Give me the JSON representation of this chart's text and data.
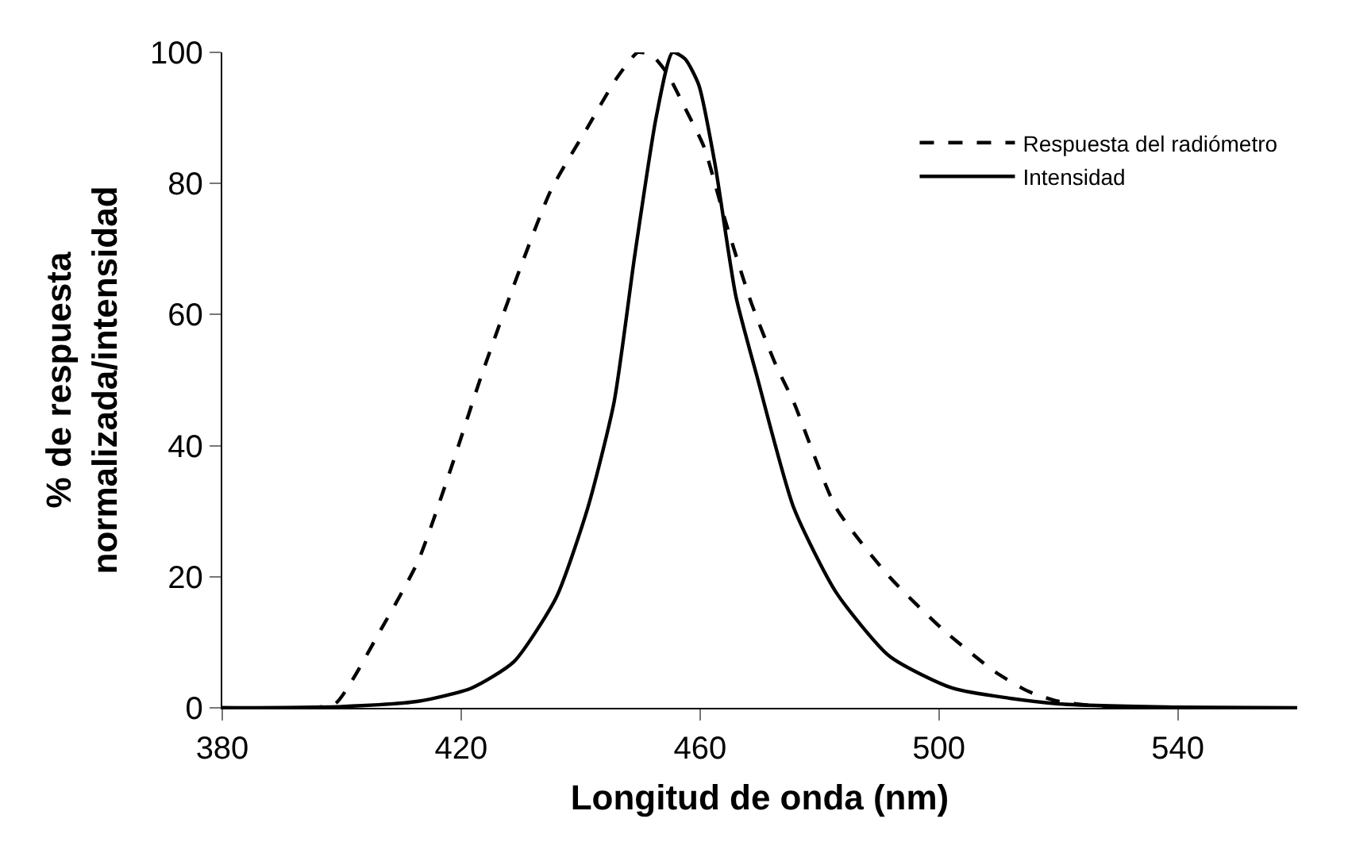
{
  "chart_data": {
    "type": "line",
    "xlabel": "Longitud de onda (nm)",
    "ylabel": "% de respuesta normalizada/intensidad",
    "xlim": [
      380,
      560
    ],
    "xticks": [
      380,
      420,
      460,
      500,
      540
    ],
    "ylim": [
      0,
      100
    ],
    "yticks": [
      0,
      20,
      40,
      60,
      80,
      100
    ],
    "grid": false,
    "legend": "top right",
    "marker": "none",
    "series": [
      {
        "name": "Respuesta del radiómetro",
        "color": "#000000",
        "line_style": "dashed",
        "x": [
          380,
          395,
          399,
          406.6,
          412.8,
          418.1,
          423.4,
          428.8,
          435,
          441.2,
          446,
          449.6,
          452,
          454.5,
          457.5,
          460.7,
          464.3,
          468.5,
          472.7,
          475.7,
          482.8,
          491.7,
          500.6,
          509.4,
          515,
          520,
          530,
          560
        ],
        "values": [
          0,
          0,
          0.7,
          12,
          22.4,
          36,
          50.7,
          64.4,
          78.9,
          88.6,
          96,
          100,
          99.5,
          96.8,
          91.5,
          85.5,
          74.1,
          62,
          52.3,
          46.6,
          30.5,
          20,
          12,
          5.5,
          2.5,
          1,
          0,
          0
        ]
      },
      {
        "name": "Intensidad",
        "color": "#000000",
        "line_style": "solid",
        "x": [
          380,
          400,
          412.8,
          421.7,
          428.8,
          435.9,
          441.2,
          445.6,
          449.1,
          452.7,
          455.4,
          457.5,
          459.8,
          462.5,
          466,
          469.5,
          475.7,
          482.8,
          491.7,
          502.3,
          520,
          540,
          560
        ],
        "values": [
          0,
          0.2,
          1,
          3,
          7,
          16.8,
          30.5,
          46.6,
          69.2,
          90.3,
          100,
          99,
          95,
          83,
          62.8,
          50.7,
          30.5,
          17.6,
          7.9,
          3,
          0.6,
          0.1,
          0
        ]
      }
    ]
  }
}
